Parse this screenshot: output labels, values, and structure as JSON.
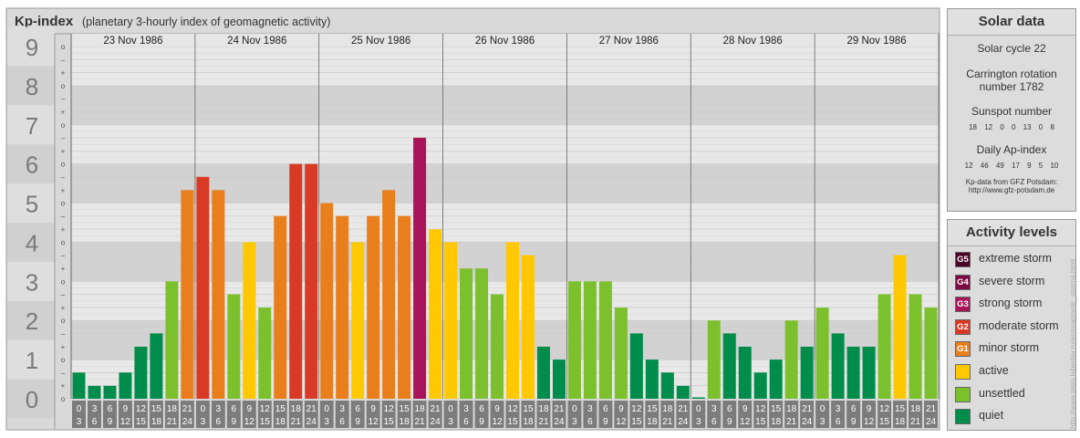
{
  "header": {
    "title": "Kp-index",
    "subtitle": "(planetary 3-hourly index of geomagnetic activity)"
  },
  "chart_data": {
    "type": "bar",
    "title": "Kp-index",
    "subtitle": "(planetary 3-hourly index of geomagnetic activity)",
    "ylim": [
      0,
      9
    ],
    "y_ticks": [
      "0",
      "1",
      "2",
      "3",
      "4",
      "5",
      "6",
      "7",
      "8",
      "9"
    ],
    "y_minor_labels": [
      "o",
      "+",
      "–"
    ],
    "days": [
      "23 Nov 1986",
      "24 Nov 1986",
      "25 Nov 1986",
      "26 Nov 1986",
      "27 Nov 1986",
      "28 Nov 1986",
      "29 Nov 1986"
    ],
    "interval_top": [
      "0",
      "3",
      "6",
      "9",
      "12",
      "15",
      "18",
      "21"
    ],
    "interval_bottom": [
      "3",
      "6",
      "9",
      "12",
      "15",
      "18",
      "21",
      "24"
    ],
    "values": [
      [
        0.67,
        0.33,
        0.33,
        0.67,
        1.33,
        1.67,
        3.0,
        5.33
      ],
      [
        5.67,
        5.33,
        2.67,
        4.0,
        2.33,
        4.67,
        6.0,
        6.0
      ],
      [
        5.0,
        4.67,
        4.0,
        4.67,
        5.33,
        4.67,
        6.67,
        4.33
      ],
      [
        4.0,
        3.33,
        3.33,
        2.67,
        4.0,
        3.67,
        1.33,
        1.0
      ],
      [
        3.0,
        3.0,
        3.0,
        2.33,
        1.67,
        1.0,
        0.67,
        0.33
      ],
      [
        0.0,
        2.0,
        1.67,
        1.33,
        0.67,
        1.0,
        2.0,
        1.33
      ],
      [
        2.33,
        1.67,
        1.33,
        1.33,
        2.67,
        3.67,
        2.67,
        2.33
      ]
    ]
  },
  "colors": {
    "quiet": "#008c4a",
    "unsettled": "#7dc02e",
    "active": "#ffc800",
    "G1": "#e87e1c",
    "G2": "#d83a26",
    "G3": "#a8145a",
    "G4": "#7a0a40",
    "G5": "#4a0022"
  },
  "solar": {
    "title": "Solar data",
    "cycle": "Solar cycle 22",
    "carrington_1": "Carrington rotation",
    "carrington_2": "number 1782",
    "sunspot_label": "Sunspot number",
    "sunspot_values": "18 12 0 0 13 0 8",
    "ap_label": "Daily Ap-index",
    "ap_values": "12 46 49 17 9 5 10",
    "source_1": "Kp-data from GFZ Potsdam:",
    "source_2": "http://www.gfz-potsdam.de"
  },
  "activity": {
    "title": "Activity levels",
    "levels": [
      {
        "code": "G5",
        "label": "extreme storm",
        "color": "#4a0022"
      },
      {
        "code": "G4",
        "label": "severe storm",
        "color": "#7a0a40"
      },
      {
        "code": "G3",
        "label": "strong storm",
        "color": "#a8145a"
      },
      {
        "code": "G2",
        "label": "moderate storm",
        "color": "#d83a26"
      },
      {
        "code": "G1",
        "label": "minor storm",
        "color": "#e87e1c"
      },
      {
        "code": "",
        "label": "active",
        "color": "#ffc800"
      },
      {
        "code": "",
        "label": "unsettled",
        "color": "#7dc02e"
      },
      {
        "code": "",
        "label": "quiet",
        "color": "#008c4a"
      }
    ]
  },
  "watermark": "http://www.tesis.lebedev.ru/en/magnetic_storms.html"
}
